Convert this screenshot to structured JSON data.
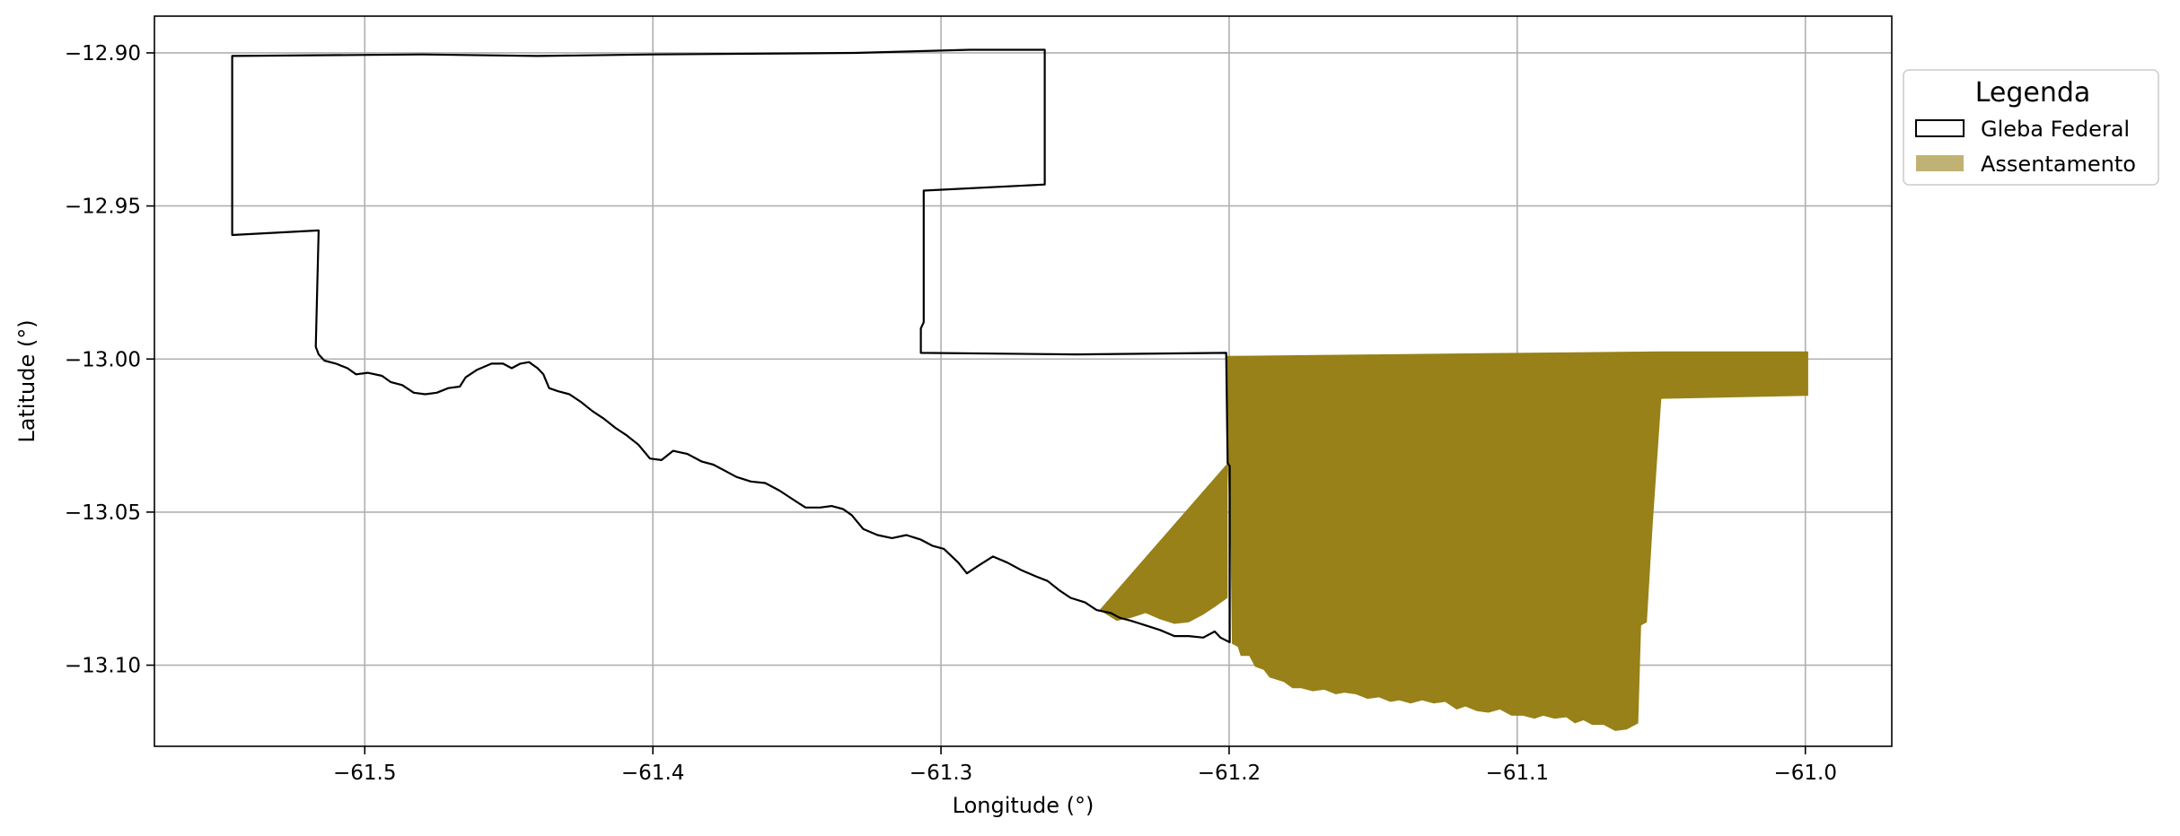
{
  "chart_data": {
    "type": "map",
    "xlabel": "Longitude (°)",
    "ylabel": "Latitude (°)",
    "xlim": [
      -61.573,
      -60.97
    ],
    "ylim": [
      -13.1265,
      -12.888
    ],
    "xticks": [
      -61.5,
      -61.4,
      -61.3,
      -61.2,
      -61.1,
      -61.0
    ],
    "yticks": [
      -12.9,
      -12.95,
      -13.0,
      -13.05,
      -13.1
    ],
    "xtick_labels": [
      "−61.5",
      "−61.4",
      "−61.3",
      "−61.2",
      "−61.1",
      "−61.0"
    ],
    "ytick_labels": [
      "−12.90",
      "−12.95",
      "−13.00",
      "−13.05",
      "−13.10"
    ],
    "grid": true,
    "legend": {
      "title": "Legenda",
      "placement": "outside-top-right",
      "entries": [
        "Gleba Federal",
        "Assentamento"
      ]
    },
    "colors": {
      "gleba_edge": "#000000",
      "assentamento_fill": "#978118",
      "assentamento_legend_fill": "#c0b275",
      "grid": "#b0b0b0"
    },
    "series": [
      {
        "name": "Gleba Federal",
        "kind": "polygon-outline",
        "coords": [
          [
            -61.546,
            -12.901
          ],
          [
            -61.48,
            -12.9005
          ],
          [
            -61.44,
            -12.901
          ],
          [
            -61.4,
            -12.9005
          ],
          [
            -61.33,
            -12.9
          ],
          [
            -61.29,
            -12.899
          ],
          [
            -61.264,
            -12.899
          ],
          [
            -61.264,
            -12.943
          ],
          [
            -61.306,
            -12.945
          ],
          [
            -61.306,
            -12.988
          ],
          [
            -61.307,
            -12.99
          ],
          [
            -61.307,
            -12.998
          ],
          [
            -61.253,
            -12.9985
          ],
          [
            -61.201,
            -12.998
          ],
          [
            -61.2005,
            -13.034
          ],
          [
            -61.1998,
            -13.035
          ],
          [
            -61.1998,
            -13.0925
          ],
          [
            -61.203,
            -13.091
          ],
          [
            -61.205,
            -13.089
          ],
          [
            -61.209,
            -13.091
          ],
          [
            -61.214,
            -13.0905
          ],
          [
            -61.219,
            -13.0905
          ],
          [
            -61.224,
            -13.0885
          ],
          [
            -61.229,
            -13.087
          ],
          [
            -61.234,
            -13.0855
          ],
          [
            -61.238,
            -13.0845
          ],
          [
            -61.241,
            -13.083
          ],
          [
            -61.246,
            -13.082
          ],
          [
            -61.25,
            -13.0795
          ],
          [
            -61.255,
            -13.078
          ],
          [
            -61.259,
            -13.0755
          ],
          [
            -61.263,
            -13.0725
          ],
          [
            -61.267,
            -13.071
          ],
          [
            -61.272,
            -13.069
          ],
          [
            -61.277,
            -13.0665
          ],
          [
            -61.282,
            -13.0645
          ],
          [
            -61.287,
            -13.0675
          ],
          [
            -61.291,
            -13.07
          ],
          [
            -61.294,
            -13.0665
          ],
          [
            -61.299,
            -13.062
          ],
          [
            -61.303,
            -13.061
          ],
          [
            -61.307,
            -13.059
          ],
          [
            -61.312,
            -13.0575
          ],
          [
            -61.317,
            -13.0585
          ],
          [
            -61.322,
            -13.0575
          ],
          [
            -61.327,
            -13.0555
          ],
          [
            -61.331,
            -13.051
          ],
          [
            -61.334,
            -13.049
          ],
          [
            -61.338,
            -13.048
          ],
          [
            -61.342,
            -13.0485
          ],
          [
            -61.347,
            -13.0485
          ],
          [
            -61.352,
            -13.0455
          ],
          [
            -61.356,
            -13.043
          ],
          [
            -61.361,
            -13.0405
          ],
          [
            -61.366,
            -13.04
          ],
          [
            -61.371,
            -13.0385
          ],
          [
            -61.375,
            -13.0365
          ],
          [
            -61.379,
            -13.0345
          ],
          [
            -61.383,
            -13.0335
          ],
          [
            -61.388,
            -13.031
          ],
          [
            -61.393,
            -13.03
          ],
          [
            -61.397,
            -13.033
          ],
          [
            -61.401,
            -13.0325
          ],
          [
            -61.405,
            -13.028
          ],
          [
            -61.409,
            -13.025
          ],
          [
            -61.413,
            -13.0225
          ],
          [
            -61.417,
            -13.0195
          ],
          [
            -61.421,
            -13.017
          ],
          [
            -61.425,
            -13.014
          ],
          [
            -61.429,
            -13.0115
          ],
          [
            -61.433,
            -13.0105
          ],
          [
            -61.436,
            -13.0095
          ],
          [
            -61.438,
            -13.005
          ],
          [
            -61.44,
            -13.003
          ],
          [
            -61.443,
            -13.001
          ],
          [
            -61.446,
            -13.0015
          ],
          [
            -61.449,
            -13.003
          ],
          [
            -61.452,
            -13.0015
          ],
          [
            -61.456,
            -13.0015
          ],
          [
            -61.461,
            -13.0035
          ],
          [
            -61.465,
            -13.006
          ],
          [
            -61.467,
            -13.009
          ],
          [
            -61.471,
            -13.0095
          ],
          [
            -61.475,
            -13.011
          ],
          [
            -61.479,
            -13.0115
          ],
          [
            -61.483,
            -13.011
          ],
          [
            -61.487,
            -13.0085
          ],
          [
            -61.491,
            -13.0075
          ],
          [
            -61.494,
            -13.0055
          ],
          [
            -61.499,
            -13.0045
          ],
          [
            -61.503,
            -13.005
          ],
          [
            -61.506,
            -13.003
          ],
          [
            -61.51,
            -13.0015
          ],
          [
            -61.514,
            -13.0005
          ],
          [
            -61.516,
            -12.9985
          ],
          [
            -61.517,
            -12.996
          ],
          [
            -61.516,
            -12.958
          ],
          [
            -61.546,
            -12.9595
          ]
        ]
      },
      {
        "name": "Assentamento",
        "kind": "polygon-fill",
        "polygons": [
          [
            [
              -61.201,
              -12.999
            ],
            [
              -61.15,
              -12.9985
            ],
            [
              -61.1,
              -12.998
            ],
            [
              -61.05,
              -12.9975
            ],
            [
              -60.999,
              -12.9975
            ],
            [
              -60.999,
              -13.012
            ],
            [
              -61.05,
              -13.013
            ],
            [
              -61.053,
              -13.054
            ],
            [
              -61.055,
              -13.086
            ],
            [
              -61.057,
              -13.087
            ],
            [
              -61.058,
              -13.119
            ],
            [
              -61.062,
              -13.121
            ],
            [
              -61.066,
              -13.1215
            ],
            [
              -61.07,
              -13.1195
            ],
            [
              -61.074,
              -13.1195
            ],
            [
              -61.077,
              -13.118
            ],
            [
              -61.08,
              -13.119
            ],
            [
              -61.083,
              -13.117
            ],
            [
              -61.087,
              -13.1175
            ],
            [
              -61.091,
              -13.1165
            ],
            [
              -61.094,
              -13.1175
            ],
            [
              -61.098,
              -13.1165
            ],
            [
              -61.102,
              -13.1165
            ],
            [
              -61.106,
              -13.1145
            ],
            [
              -61.11,
              -13.1155
            ],
            [
              -61.114,
              -13.115
            ],
            [
              -61.118,
              -13.1135
            ],
            [
              -61.121,
              -13.1145
            ],
            [
              -61.125,
              -13.112
            ],
            [
              -61.129,
              -13.1125
            ],
            [
              -61.133,
              -13.1115
            ],
            [
              -61.137,
              -13.1125
            ],
            [
              -61.141,
              -13.1115
            ],
            [
              -61.144,
              -13.112
            ],
            [
              -61.148,
              -13.1105
            ],
            [
              -61.152,
              -13.111
            ],
            [
              -61.156,
              -13.1095
            ],
            [
              -61.16,
              -13.109
            ],
            [
              -61.163,
              -13.1095
            ],
            [
              -61.167,
              -13.108
            ],
            [
              -61.171,
              -13.1085
            ],
            [
              -61.175,
              -13.1075
            ],
            [
              -61.178,
              -13.1075
            ],
            [
              -61.181,
              -13.1055
            ],
            [
              -61.186,
              -13.104
            ],
            [
              -61.188,
              -13.1015
            ],
            [
              -61.191,
              -13.1005
            ],
            [
              -61.193,
              -13.097
            ],
            [
              -61.196,
              -13.097
            ],
            [
              -61.197,
              -13.094
            ],
            [
              -61.199,
              -13.093
            ],
            [
              -61.1995,
              -13.06
            ],
            [
              -61.2005,
              -13.035
            ]
          ],
          [
            [
              -61.2005,
              -13.034
            ],
            [
              -61.2005,
              -13.078
            ],
            [
              -61.205,
              -13.081
            ],
            [
              -61.209,
              -13.0835
            ],
            [
              -61.214,
              -13.086
            ],
            [
              -61.219,
              -13.0865
            ],
            [
              -61.224,
              -13.085
            ],
            [
              -61.229,
              -13.083
            ],
            [
              -61.234,
              -13.0845
            ],
            [
              -61.239,
              -13.0855
            ],
            [
              -61.245,
              -13.082
            ]
          ]
        ]
      }
    ]
  }
}
